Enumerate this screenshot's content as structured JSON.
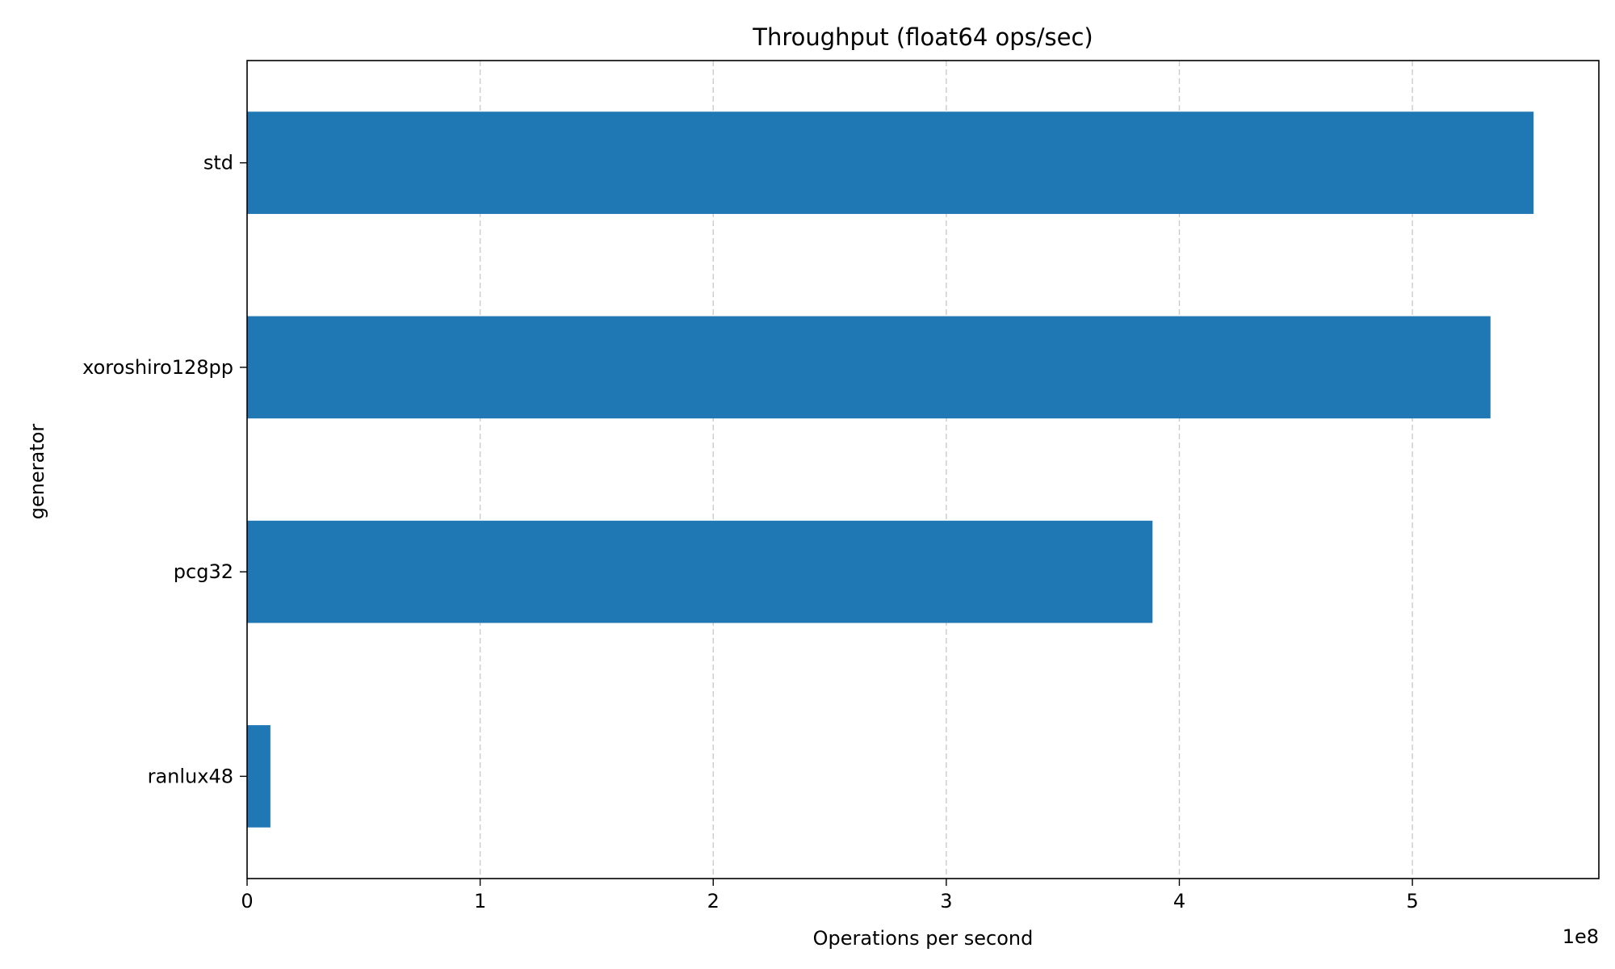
{
  "chart_data": {
    "type": "bar",
    "orientation": "horizontal",
    "title": "Throughput (float64 ops/sec)",
    "xlabel": "Operations per second",
    "ylabel": "generator",
    "x_offset_label": "1e8",
    "x_scale": 100000000,
    "categories": [
      "std",
      "xoroshiro128pp",
      "pcg32",
      "ranlux48"
    ],
    "values": [
      552000000,
      533500000,
      388500000,
      10000000
    ],
    "xlim": [
      0,
      580000000
    ],
    "xticks": [
      0,
      1,
      2,
      3,
      4,
      5
    ],
    "xtick_labels": [
      "0",
      "1",
      "2",
      "3",
      "4",
      "5"
    ],
    "grid": "x",
    "legend": "none",
    "colors": {
      "bar": "#1f77b4",
      "grid": "#cccccc",
      "axis": "#000000"
    }
  }
}
